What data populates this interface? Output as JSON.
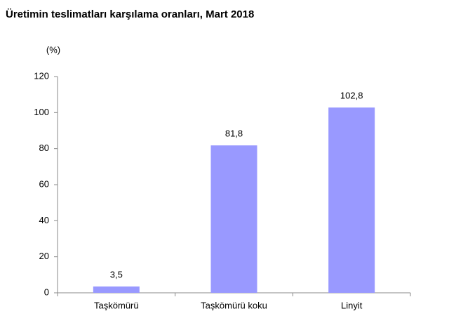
{
  "chart_data": {
    "type": "bar",
    "title": "Üretimin teslimatları karşılama oranları, Mart 2018",
    "y_label": "(%)",
    "categories": [
      "Taşkömürü",
      "Taşkömürü koku",
      "Linyit"
    ],
    "values": [
      3.5,
      81.8,
      102.8
    ],
    "value_labels": [
      "3,5",
      "81,8",
      "102,8"
    ],
    "color": "#9999ff",
    "ylim": [
      0,
      120
    ],
    "yticks": [
      0,
      20,
      40,
      60,
      80,
      100,
      120
    ],
    "grid": false
  }
}
